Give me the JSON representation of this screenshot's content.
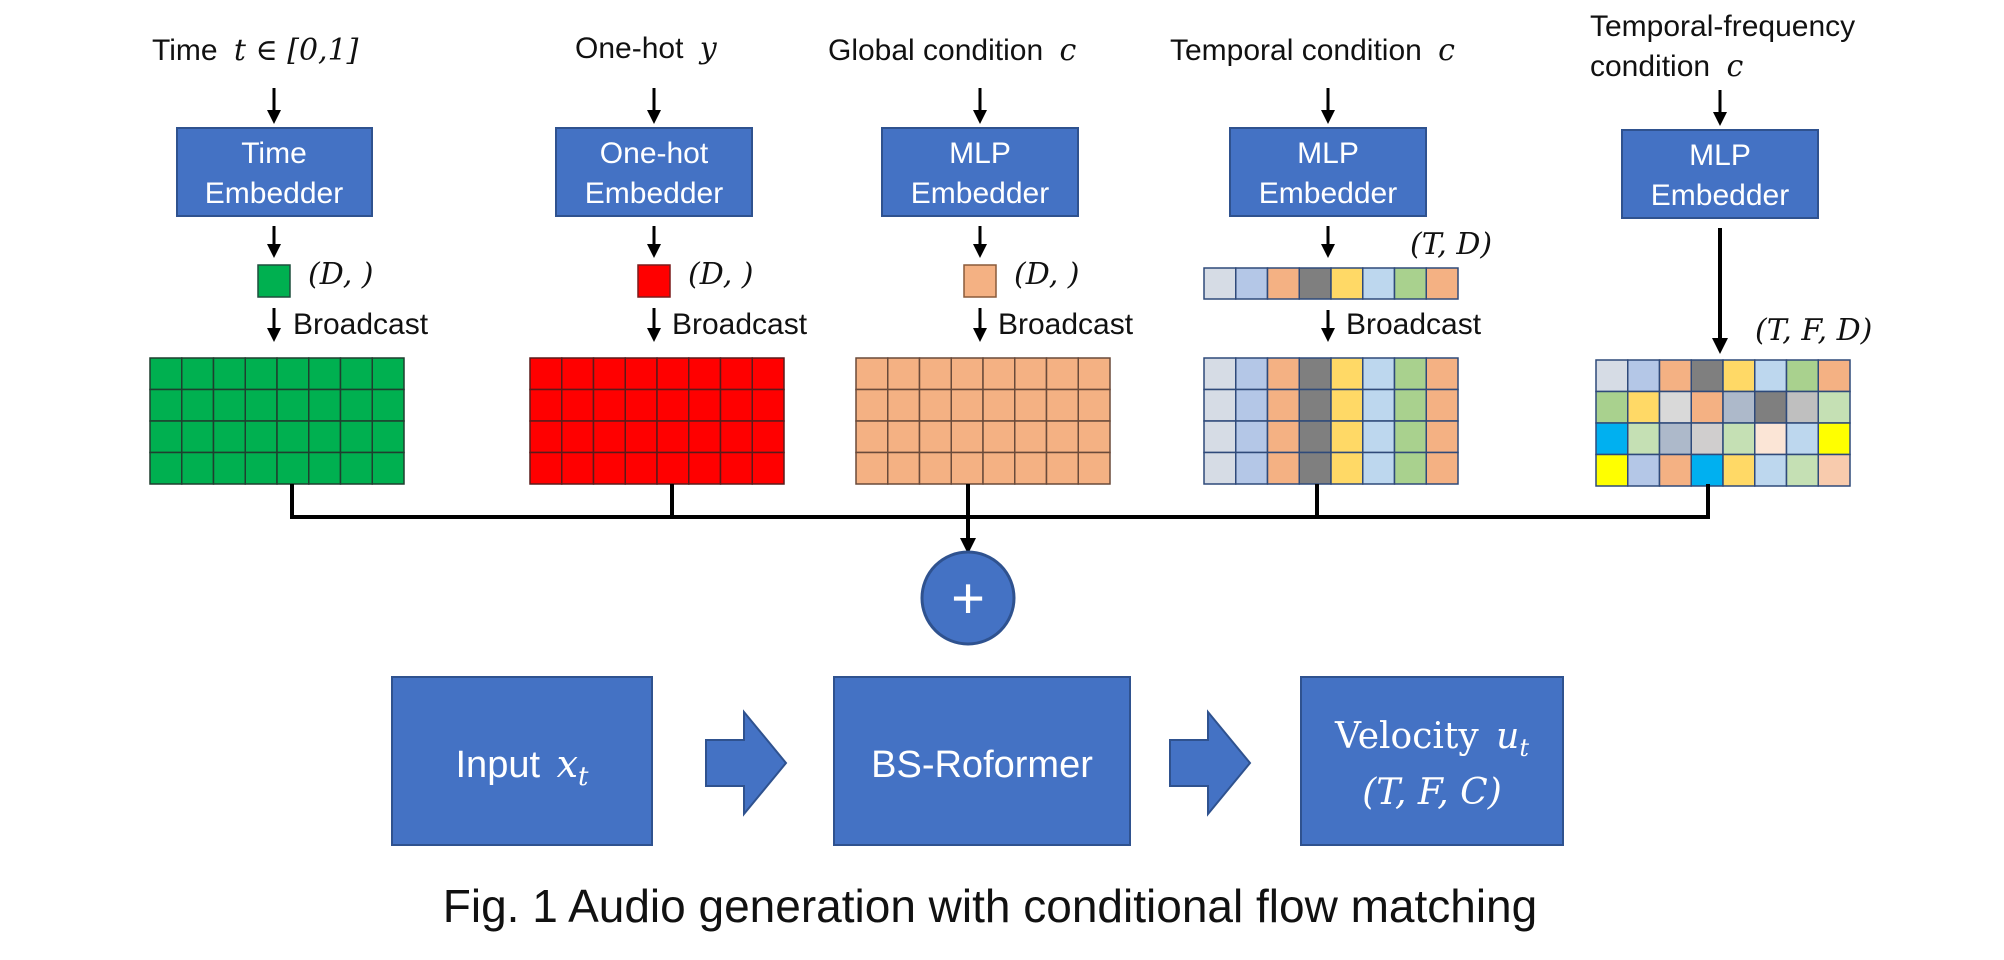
{
  "caption": "Fig. 1 Audio generation with conditional flow matching",
  "conditions": [
    {
      "id": "time",
      "input_label": "Time",
      "input_math": "t ∈ [0,1]",
      "embedder": [
        "Time",
        "Embedder"
      ],
      "embed_shape": "(D, )",
      "broadcast_label": "Broadcast",
      "color": "#00B050"
    },
    {
      "id": "onehot",
      "input_label": "One-hot",
      "input_math": "y",
      "embedder": [
        "One-hot",
        "Embedder"
      ],
      "embed_shape": "(D, )",
      "broadcast_label": "Broadcast",
      "color": "#FF0000"
    },
    {
      "id": "global",
      "input_label": "Global condition",
      "input_math": "c",
      "embedder": [
        "MLP",
        "Embedder"
      ],
      "embed_shape": "(D, )",
      "broadcast_label": "Broadcast",
      "color": "#F4B183"
    },
    {
      "id": "temporal",
      "input_label": "Temporal condition",
      "input_math": "c",
      "embedder": [
        "MLP",
        "Embedder"
      ],
      "embed_shape": "(T, D)",
      "broadcast_label": "Broadcast",
      "column_colors": [
        "#D6DCE5",
        "#B4C7E7",
        "#F4B183",
        "#7F7F7F",
        "#FFD966",
        "#BDD7EE",
        "#A9D18E",
        "#F4B183"
      ]
    },
    {
      "id": "tf",
      "input_label_line1": "Temporal-frequency",
      "input_label_line2": "condition",
      "input_math": "c",
      "embedder": [
        "MLP",
        "Embedder"
      ],
      "embed_shape": "(T, F, D)",
      "cell_colors": [
        [
          "#D6DCE5",
          "#B4C7E7",
          "#F4B183",
          "#7F7F7F",
          "#FFD966",
          "#BDD7EE",
          "#A9D18E",
          "#F4B183"
        ],
        [
          "#A9D18E",
          "#FFD966",
          "#D9D9D9",
          "#F4B183",
          "#ADB9CA",
          "#7F7F7F",
          "#BFBFBF",
          "#C5E0B4"
        ],
        [
          "#00B0F0",
          "#C5E0B4",
          "#ADB9CA",
          "#D0CECE",
          "#C5E0B4",
          "#FBE5D6",
          "#BDD7EE",
          "#FFFF00"
        ],
        [
          "#FFFF00",
          "#B4C7E7",
          "#F4B183",
          "#00B0F0",
          "#FFD966",
          "#BDD7EE",
          "#C5E0B4",
          "#F8CBAD"
        ]
      ]
    }
  ],
  "sum_symbol": "+",
  "pipeline": {
    "input_label": "Input",
    "input_math": "x",
    "input_sub": "t",
    "model_label": "BS-Roformer",
    "output_label": "Velocity",
    "output_math": "u",
    "output_sub": "t",
    "output_shape": "(T, F, C)"
  }
}
